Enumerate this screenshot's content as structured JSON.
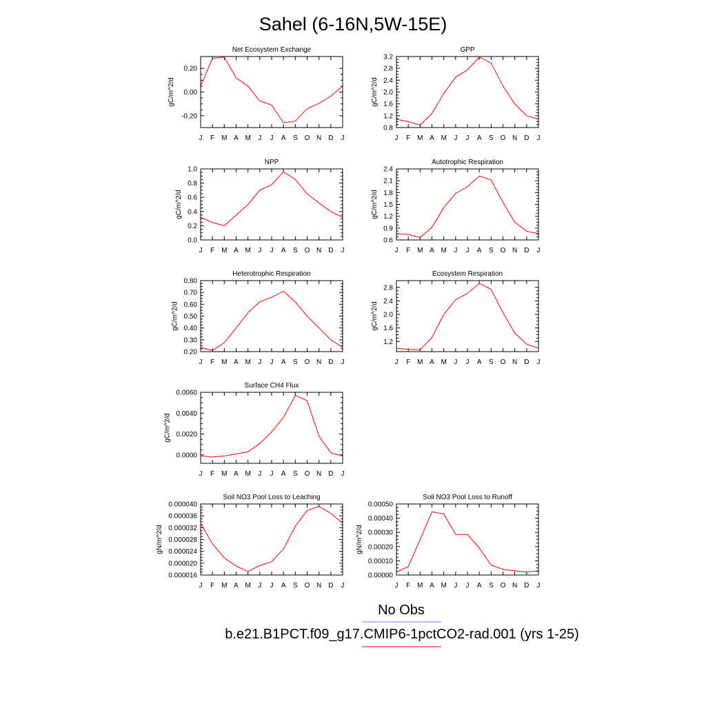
{
  "page_title": "Sahel (6-16N,5W-15E)",
  "colors": {
    "model_line": "#ff0000",
    "obs_line": "#7777ff",
    "axis": "#000000"
  },
  "legend": {
    "obs_label": "No Obs",
    "model_label": "b.e21.B1PCT.f09_g17.CMIP6-1pctCO2-rad.001 (yrs 1-25)"
  },
  "chart_data": [
    {
      "type": "line",
      "title": "Net Ecosystem Exchange",
      "ylabel": "gC/m^2/d",
      "x": [
        "J",
        "F",
        "M",
        "A",
        "M",
        "J",
        "J",
        "A",
        "S",
        "O",
        "N",
        "D",
        "J"
      ],
      "ylim": [
        -0.3,
        0.3
      ],
      "yticks": [
        -0.2,
        0.0,
        0.2
      ],
      "ytick_labels": [
        "-0.20",
        "0.00",
        "0.20"
      ],
      "series": [
        {
          "values": [
            0.05,
            0.285,
            0.295,
            0.12,
            0.05,
            -0.075,
            -0.11,
            -0.26,
            -0.245,
            -0.14,
            -0.095,
            -0.035,
            0.05
          ]
        }
      ]
    },
    {
      "type": "line",
      "title": "GPP",
      "ylabel": "gC/m^2/d",
      "x": [
        "J",
        "F",
        "M",
        "A",
        "M",
        "J",
        "J",
        "A",
        "S",
        "O",
        "N",
        "D",
        "J"
      ],
      "ylim": [
        0.8,
        3.2
      ],
      "yticks": [
        0.8,
        1.2,
        1.6,
        2.0,
        2.4,
        2.8,
        3.2
      ],
      "ytick_labels": [
        "0.8",
        "1.2",
        "1.6",
        "2.0",
        "2.4",
        "2.8",
        "3.2"
      ],
      "series": [
        {
          "values": [
            1.08,
            1.0,
            0.88,
            1.28,
            1.95,
            2.5,
            2.75,
            3.18,
            2.98,
            2.2,
            1.6,
            1.2,
            1.08
          ]
        }
      ]
    },
    {
      "type": "line",
      "title": "NPP",
      "ylabel": "gC/m^2/d",
      "x": [
        "J",
        "F",
        "M",
        "A",
        "M",
        "J",
        "J",
        "A",
        "S",
        "O",
        "N",
        "D",
        "J"
      ],
      "ylim": [
        0.0,
        1.0
      ],
      "yticks": [
        0.0,
        0.2,
        0.4,
        0.6,
        0.8,
        1.0
      ],
      "ytick_labels": [
        "0.0",
        "0.2",
        "0.4",
        "0.6",
        "0.8",
        "1.0"
      ],
      "series": [
        {
          "values": [
            0.32,
            0.245,
            0.2,
            0.35,
            0.5,
            0.7,
            0.78,
            0.96,
            0.85,
            0.65,
            0.52,
            0.4,
            0.32
          ]
        }
      ]
    },
    {
      "type": "line",
      "title": "Autotrophic Respiration",
      "ylabel": "gC/m^2/d",
      "x": [
        "J",
        "F",
        "M",
        "A",
        "M",
        "J",
        "J",
        "A",
        "S",
        "O",
        "N",
        "D",
        "J"
      ],
      "ylim": [
        0.6,
        2.4
      ],
      "yticks": [
        0.6,
        0.9,
        1.2,
        1.5,
        1.8,
        2.1,
        2.4
      ],
      "ytick_labels": [
        "0.6",
        "0.9",
        "1.2",
        "1.5",
        "1.8",
        "2.1",
        "2.4"
      ],
      "series": [
        {
          "values": [
            0.76,
            0.74,
            0.66,
            0.92,
            1.42,
            1.78,
            1.95,
            2.22,
            2.12,
            1.55,
            1.05,
            0.82,
            0.76
          ]
        }
      ]
    },
    {
      "type": "line",
      "title": "Heterotrophic Respiration",
      "ylabel": "gC/m^2/d",
      "x": [
        "J",
        "F",
        "M",
        "A",
        "M",
        "J",
        "J",
        "A",
        "S",
        "O",
        "N",
        "D",
        "J"
      ],
      "ylim": [
        0.2,
        0.8
      ],
      "yticks": [
        0.2,
        0.3,
        0.4,
        0.5,
        0.6,
        0.7,
        0.8
      ],
      "ytick_labels": [
        "0.20",
        "0.30",
        "0.40",
        "0.50",
        "0.60",
        "0.70",
        "0.80"
      ],
      "series": [
        {
          "values": [
            0.235,
            0.21,
            0.275,
            0.4,
            0.53,
            0.62,
            0.66,
            0.71,
            0.62,
            0.5,
            0.4,
            0.3,
            0.235
          ]
        }
      ]
    },
    {
      "type": "line",
      "title": "Ecosystem Respiration",
      "ylabel": "gC/m^2/d",
      "x": [
        "J",
        "F",
        "M",
        "A",
        "M",
        "J",
        "J",
        "A",
        "S",
        "O",
        "N",
        "D",
        "J"
      ],
      "ylim": [
        0.9,
        3.0
      ],
      "yticks": [
        1.2,
        1.6,
        2.0,
        2.4,
        2.8
      ],
      "ytick_labels": [
        "1.2",
        "1.6",
        "2.0",
        "2.4",
        "2.8"
      ],
      "series": [
        {
          "values": [
            1.0,
            0.97,
            0.95,
            1.32,
            2.0,
            2.44,
            2.62,
            2.92,
            2.74,
            2.05,
            1.45,
            1.12,
            1.0
          ]
        }
      ]
    },
    {
      "type": "line",
      "title": "Surface CH4 Flux",
      "ylabel": "gC/m^2/d",
      "x": [
        "J",
        "F",
        "M",
        "A",
        "M",
        "J",
        "J",
        "A",
        "S",
        "O",
        "N",
        "D",
        "J"
      ],
      "ylim": [
        -0.0008,
        0.006
      ],
      "yticks": [
        0.0,
        0.002,
        0.004,
        0.006
      ],
      "ytick_labels": [
        "0.0000",
        "0.0020",
        "0.0040",
        "0.0060"
      ],
      "series": [
        {
          "values": [
            -0.0001,
            -0.0002,
            -0.0001,
            0.0001,
            0.0003,
            0.0011,
            0.0022,
            0.0036,
            0.0057,
            0.0052,
            0.0018,
            0.0002,
            -0.0001
          ]
        }
      ]
    },
    {
      "type": "line",
      "title": "Soil NO3 Pool Loss to Leaching",
      "ylabel": "gN/m^2/d",
      "x": [
        "J",
        "F",
        "M",
        "A",
        "M",
        "J",
        "J",
        "A",
        "S",
        "O",
        "N",
        "D",
        "J"
      ],
      "ylim": [
        1.6e-05,
        4e-05
      ],
      "yticks": [
        1.6e-05,
        2e-05,
        2.4e-05,
        2.8e-05,
        3.2e-05,
        3.6e-05,
        4e-05
      ],
      "ytick_labels": [
        "0.000016",
        "0.000020",
        "0.000024",
        "0.000028",
        "0.000032",
        "0.000036",
        "0.000040"
      ],
      "series": [
        {
          "values": [
            3.35e-05,
            2.65e-05,
            2.18e-05,
            1.9e-05,
            1.72e-05,
            1.92e-05,
            2.05e-05,
            2.48e-05,
            3.25e-05,
            3.78e-05,
            3.92e-05,
            3.68e-05,
            3.35e-05
          ]
        }
      ]
    },
    {
      "type": "line",
      "title": "Soil NO3 Pool Loss to Runoff",
      "ylabel": "gN/m^2/d",
      "x": [
        "J",
        "F",
        "M",
        "A",
        "M",
        "J",
        "J",
        "A",
        "S",
        "O",
        "N",
        "D",
        "J"
      ],
      "ylim": [
        0.0,
        0.0005
      ],
      "yticks": [
        0.0,
        0.0001,
        0.0002,
        0.0003,
        0.0004,
        0.0005
      ],
      "ytick_labels": [
        "0.00000",
        "0.00010",
        "0.00020",
        "0.00030",
        "0.00040",
        "0.00050"
      ],
      "series": [
        {
          "values": [
            2e-05,
            6e-05,
            0.00025,
            0.000445,
            0.00043,
            0.000285,
            0.000285,
            0.00019,
            7e-05,
            4e-05,
            3e-05,
            2e-05,
            3e-05
          ]
        }
      ]
    }
  ]
}
